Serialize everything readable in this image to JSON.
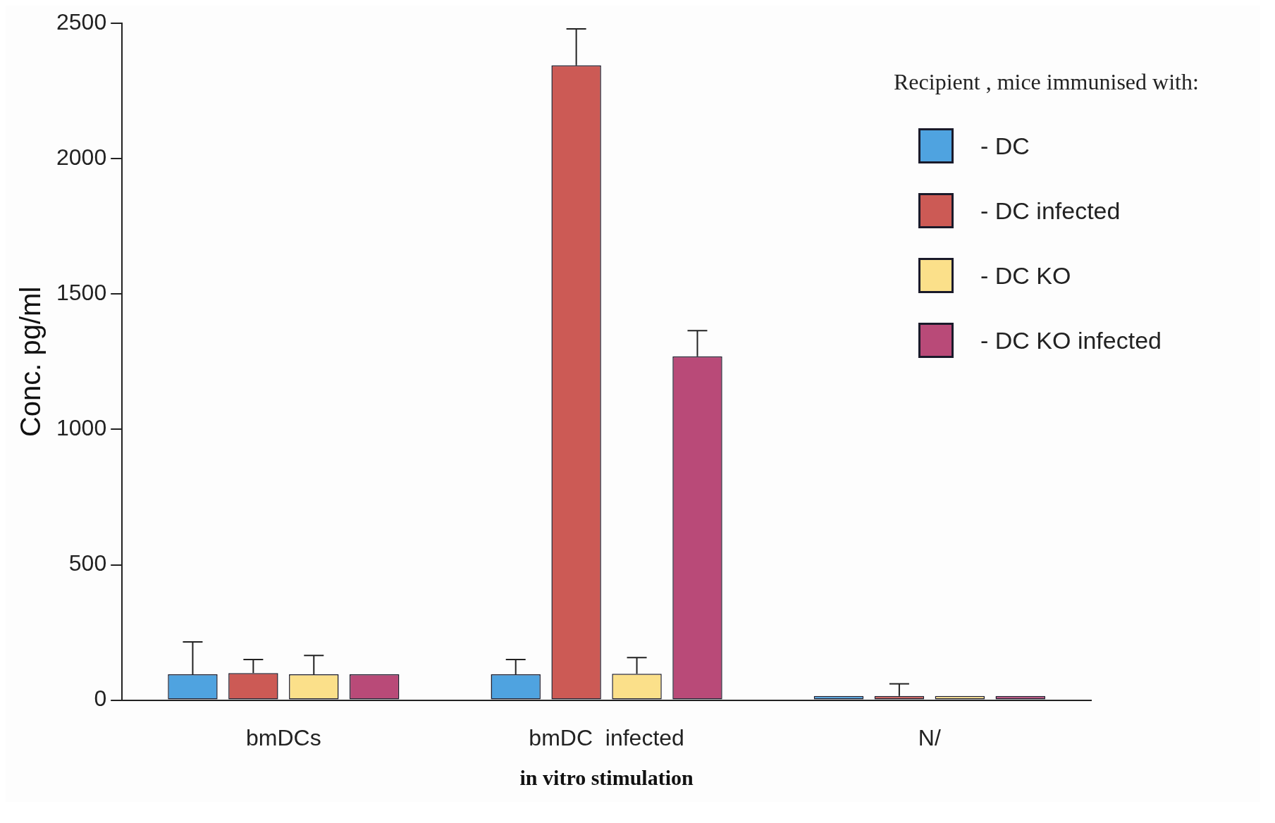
{
  "chart_data": {
    "type": "bar",
    "xlabel": "in vitro stimulation",
    "ylabel": "Conc. pg/ml",
    "legend_title": "Recipient , mice immunised with:",
    "categories": [
      "bmDCs",
      "bmDC  infected",
      "N/"
    ],
    "series": [
      {
        "name": "- DC",
        "color": "#4fa3e0",
        "values": [
          95,
          95,
          15
        ],
        "errors": [
          120,
          55,
          null
        ]
      },
      {
        "name": "- DC infected",
        "color": "#cc5a55",
        "values": [
          100,
          2345,
          15
        ],
        "errors": [
          50,
          135,
          45
        ]
      },
      {
        "name": "- DC KO",
        "color": "#fbe08a",
        "values": [
          95,
          97,
          15
        ],
        "errors": [
          70,
          60,
          null
        ]
      },
      {
        "name": "- DC KO infected",
        "color": "#b94a78",
        "values": [
          95,
          1270,
          15
        ],
        "errors": [
          null,
          95,
          null
        ]
      }
    ],
    "ylim": [
      0,
      2500
    ],
    "yticks": [
      0,
      500,
      1000,
      1500,
      2000,
      2500
    ],
    "grid": false,
    "legend": "top right"
  }
}
